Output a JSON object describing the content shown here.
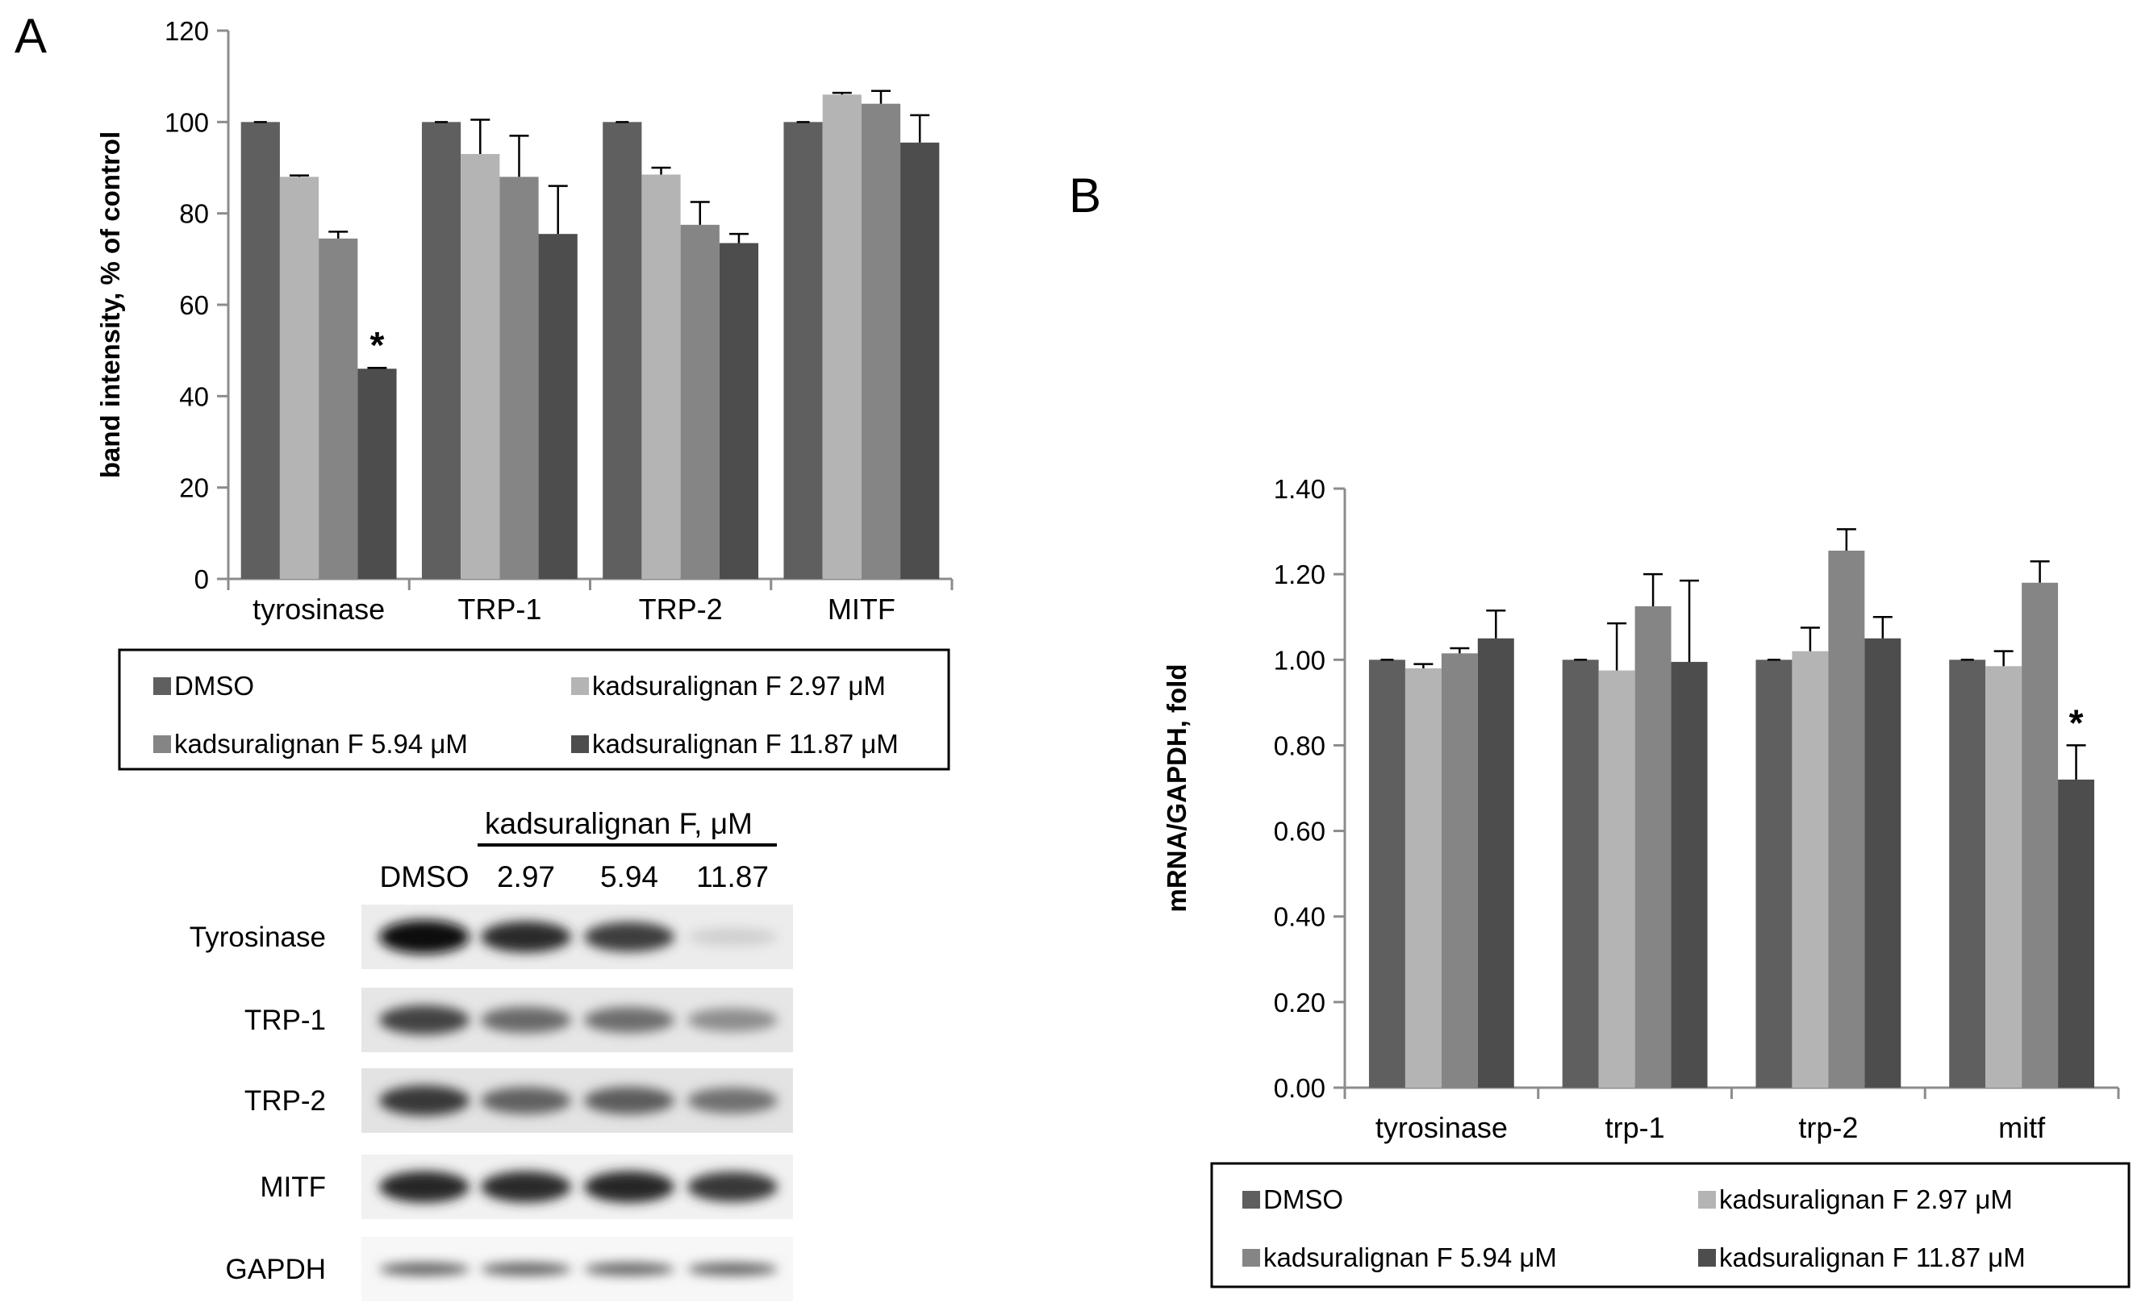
{
  "panels": {
    "a": "A",
    "b": "B"
  },
  "colors": {
    "dmso": "#5f5f5f",
    "kf297": "#b4b4b4",
    "kf594": "#858585",
    "kf1187": "#4d4d4d",
    "axis": "#8c8c8c",
    "text": "#000000"
  },
  "chart_data": [
    {
      "type": "bar",
      "categories": [
        "tyrosinase",
        "TRP-1",
        "TRP-2",
        "MITF"
      ],
      "ylabel": "band intensity, % of control",
      "ylim": [
        0,
        120
      ],
      "yticks": [
        0,
        20,
        40,
        60,
        80,
        100,
        120
      ],
      "grid": false,
      "legend_position": "bottom-box",
      "series": [
        {
          "name": "DMSO",
          "values": [
            100,
            100,
            100,
            100
          ],
          "errors": [
            0,
            0,
            0,
            0
          ]
        },
        {
          "name": "kadsuralignan F 2.97 μM",
          "values": [
            88,
            93,
            88.5,
            106
          ],
          "errors": [
            0.3,
            7.5,
            1.5,
            0.4
          ]
        },
        {
          "name": "kadsuralignan F 5.94 μM",
          "values": [
            74.5,
            88,
            77.5,
            104
          ],
          "errors": [
            1.5,
            9,
            5,
            2.8
          ]
        },
        {
          "name": "kadsuralignan F 11.87 μM",
          "values": [
            46,
            75.5,
            73.5,
            95.5
          ],
          "errors": [
            0.2,
            10.5,
            2,
            6
          ]
        }
      ],
      "annotations": [
        {
          "text": "*",
          "category": "tyrosinase",
          "series": 3
        }
      ]
    },
    {
      "type": "bar",
      "categories": [
        "tyrosinase",
        "trp-1",
        "trp-2",
        "mitf"
      ],
      "ylabel": "mRNA/GAPDH, fold",
      "ylim": [
        0,
        1.4
      ],
      "yticks": [
        "0.00",
        "0.20",
        "0.40",
        "0.60",
        "0.80",
        "1.00",
        "1.20",
        "1.40"
      ],
      "grid": false,
      "legend_position": "bottom-box",
      "series": [
        {
          "name": "DMSO",
          "values": [
            1.0,
            1.0,
            1.0,
            1.0
          ],
          "errors": [
            0,
            0,
            0,
            0
          ]
        },
        {
          "name": "kadsuralignan F 2.97 μM",
          "values": [
            0.98,
            0.975,
            1.02,
            0.985
          ],
          "errors": [
            0.01,
            0.11,
            0.055,
            0.035
          ]
        },
        {
          "name": "kadsuralignan F 5.94 μM",
          "values": [
            1.015,
            1.125,
            1.255,
            1.18
          ],
          "errors": [
            0.012,
            0.075,
            0.05,
            0.05
          ]
        },
        {
          "name": "kadsuralignan F 11.87 μM",
          "values": [
            1.05,
            0.995,
            1.05,
            0.72
          ],
          "errors": [
            0.065,
            0.19,
            0.05,
            0.08
          ]
        }
      ],
      "annotations": [
        {
          "text": "*",
          "category": "mitf",
          "series": 3
        }
      ]
    }
  ],
  "blot": {
    "treatment_label": "kadsuralignan F, μM",
    "lanes": [
      "DMSO",
      "2.97",
      "5.94",
      "11.87"
    ],
    "rows": [
      {
        "name": "Tyrosinase",
        "intensity": [
          1.0,
          0.85,
          0.78,
          0.12
        ]
      },
      {
        "name": "TRP-1",
        "intensity": [
          0.75,
          0.58,
          0.56,
          0.42
        ]
      },
      {
        "name": "TRP-2",
        "intensity": [
          0.8,
          0.62,
          0.64,
          0.55
        ]
      },
      {
        "name": "MITF",
        "intensity": [
          0.88,
          0.86,
          0.88,
          0.8
        ]
      },
      {
        "name": "GAPDH",
        "intensity": [
          0.62,
          0.62,
          0.6,
          0.6
        ]
      }
    ]
  }
}
